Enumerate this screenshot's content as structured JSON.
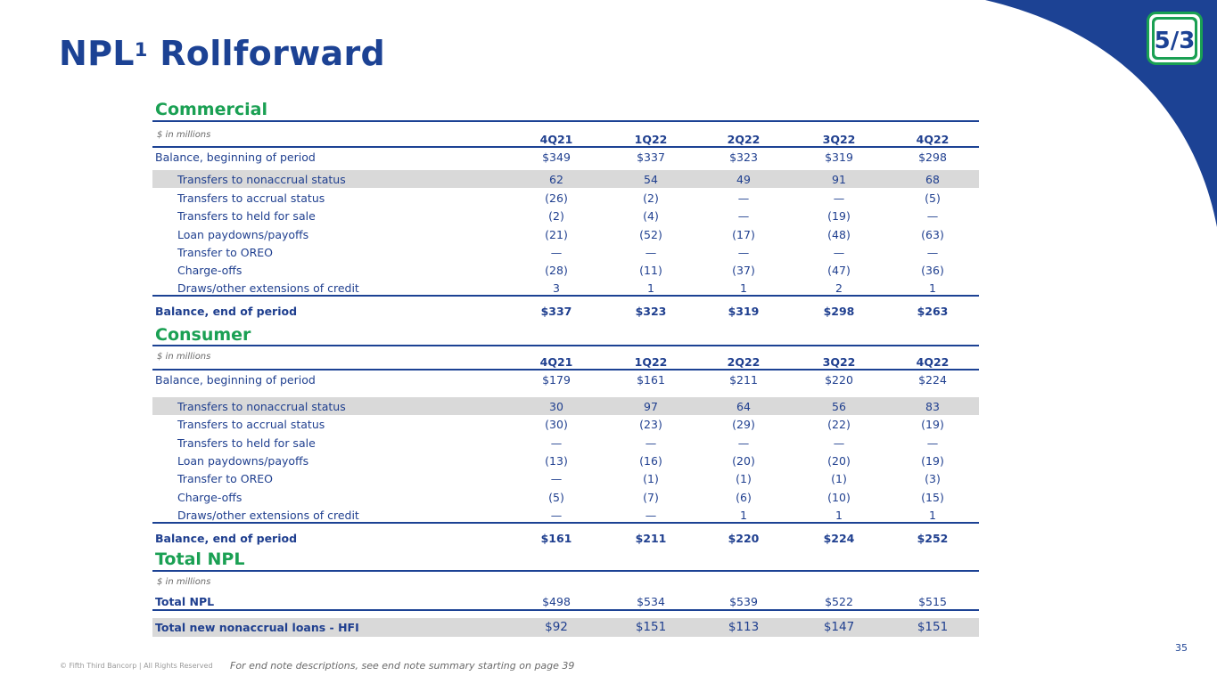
{
  "page": {
    "title": "NPL",
    "title_sup": "1",
    "title_rest": " Rollforward",
    "page_number": "35",
    "copyright": "© Fifth Third Bancorp | All Rights Reserved",
    "end_note": "For end note descriptions, see end note summary starting on page 39",
    "logo_text": "5/3"
  },
  "colors": {
    "navy": "#1c4294",
    "green": "#1aa053",
    "shade": "#d9d9d9"
  },
  "commercial": {
    "heading": "Commercial",
    "units": "$ in millions",
    "columns": [
      "4Q21",
      "1Q22",
      "2Q22",
      "3Q22",
      "4Q22"
    ],
    "rows": [
      {
        "label": "Balance, beginning of period",
        "values": [
          "$349",
          "$337",
          "$323",
          "$319",
          "$298"
        ]
      },
      {
        "label": "Transfers to nonaccrual status",
        "values": [
          "62",
          "54",
          "49",
          "91",
          "68"
        ]
      },
      {
        "label": "Transfers to accrual status",
        "values": [
          "(26)",
          "(2)",
          "—",
          "—",
          "(5)"
        ]
      },
      {
        "label": "Transfers to held for sale",
        "values": [
          "(2)",
          "(4)",
          "—",
          "(19)",
          "—"
        ]
      },
      {
        "label": "Loan paydowns/payoffs",
        "values": [
          "(21)",
          "(52)",
          "(17)",
          "(48)",
          "(63)"
        ]
      },
      {
        "label": "Transfer to OREO",
        "values": [
          "—",
          "—",
          "—",
          "—",
          "—"
        ]
      },
      {
        "label": "Charge-offs",
        "values": [
          "(28)",
          "(11)",
          "(37)",
          "(47)",
          "(36)"
        ]
      },
      {
        "label": "Draws/other extensions of credit",
        "values": [
          "3",
          "1",
          "1",
          "2",
          "1"
        ]
      },
      {
        "label": "Balance, end of period",
        "values": [
          "$337",
          "$323",
          "$319",
          "$298",
          "$263"
        ]
      }
    ]
  },
  "consumer": {
    "heading": "Consumer",
    "units": "$ in millions",
    "columns": [
      "4Q21",
      "1Q22",
      "2Q22",
      "3Q22",
      "4Q22"
    ],
    "rows": [
      {
        "label": "Balance, beginning of period",
        "values": [
          "$179",
          "$161",
          "$211",
          "$220",
          "$224"
        ]
      },
      {
        "label": "Transfers to nonaccrual status",
        "values": [
          "30",
          "97",
          "64",
          "56",
          "83"
        ]
      },
      {
        "label": "Transfers to accrual status",
        "values": [
          "(30)",
          "(23)",
          "(29)",
          "(22)",
          "(19)"
        ]
      },
      {
        "label": "Transfers to held for sale",
        "values": [
          "—",
          "—",
          "—",
          "—",
          "—"
        ]
      },
      {
        "label": "Loan paydowns/payoffs",
        "values": [
          "(13)",
          "(16)",
          "(20)",
          "(20)",
          "(19)"
        ]
      },
      {
        "label": "Transfer to OREO",
        "values": [
          "—",
          "(1)",
          "(1)",
          "(1)",
          "(3)"
        ]
      },
      {
        "label": "Charge-offs",
        "values": [
          "(5)",
          "(7)",
          "(6)",
          "(10)",
          "(15)"
        ]
      },
      {
        "label": "Draws/other extensions of credit",
        "values": [
          "—",
          "—",
          "1",
          "1",
          "1"
        ]
      },
      {
        "label": "Balance, end of period",
        "values": [
          "$161",
          "$211",
          "$220",
          "$224",
          "$252"
        ]
      }
    ]
  },
  "total": {
    "heading": "Total NPL",
    "units": "$ in millions",
    "rows": [
      {
        "label": "Total NPL",
        "values": [
          "$498",
          "$534",
          "$539",
          "$522",
          "$515"
        ]
      },
      {
        "label": "Total new nonaccrual loans - HFI",
        "values": [
          "$92",
          "$151",
          "$113",
          "$147",
          "$151"
        ]
      }
    ]
  }
}
